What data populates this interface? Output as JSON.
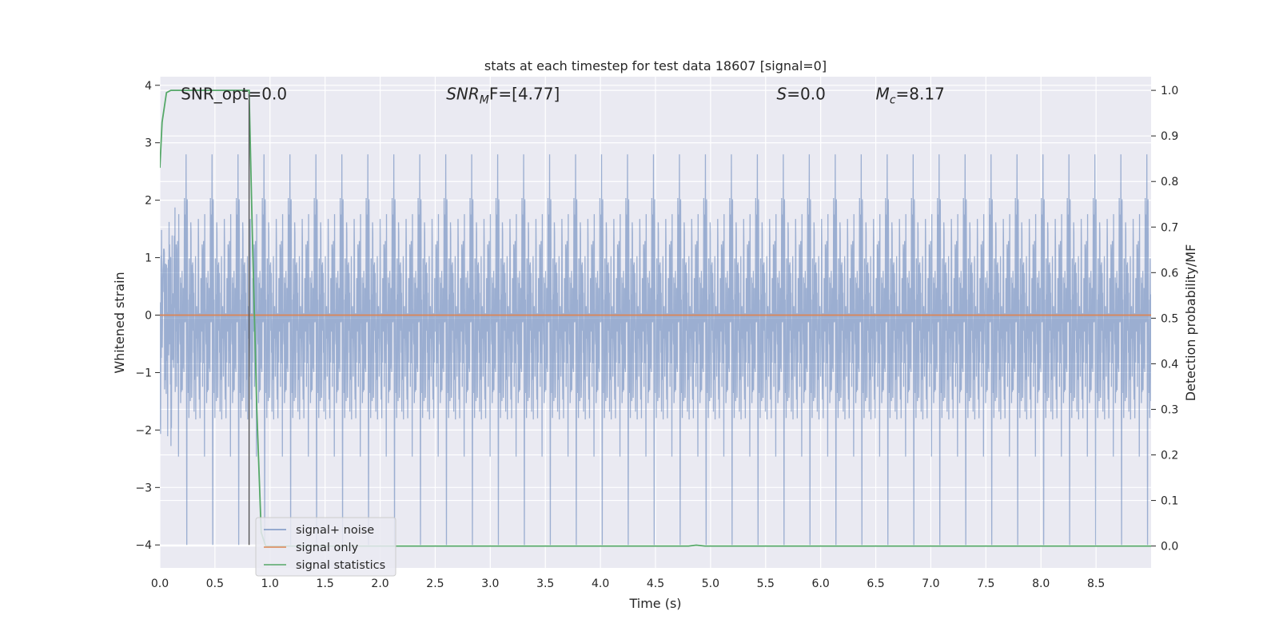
{
  "chart_data": {
    "type": "line",
    "title": "stats at each timestep for test data 18607 [signal=0]",
    "xlabel": "Time (s)",
    "ylabel_left": "Whitened strain",
    "ylabel_right": "Detection probability/MF",
    "xlim": [
      0.0,
      9.0
    ],
    "ylim_left": [
      -4.4,
      4.15
    ],
    "ylim_right": [
      -0.048,
      1.03
    ],
    "x_ticks": [
      0.0,
      0.5,
      1.0,
      1.5,
      2.0,
      2.5,
      3.0,
      3.5,
      4.0,
      4.5,
      5.0,
      5.5,
      6.0,
      6.5,
      7.0,
      7.5,
      8.0,
      8.5
    ],
    "x_tick_labels": [
      "0.0",
      "0.5",
      "1.0",
      "1.5",
      "2.0",
      "2.5",
      "3.0",
      "3.5",
      "4.0",
      "4.5",
      "5.0",
      "5.5",
      "6.0",
      "6.5",
      "7.0",
      "7.5",
      "8.0",
      "8.5"
    ],
    "y_left_ticks": [
      4,
      3,
      2,
      1,
      0,
      -1,
      -2,
      -3,
      -4
    ],
    "y_left_tick_labels": [
      "4",
      "3",
      "2",
      "1",
      "0",
      "−1",
      "−2",
      "−3",
      "−4"
    ],
    "y_right_ticks": [
      1.0,
      0.9,
      0.8,
      0.7,
      0.6,
      0.5,
      0.4,
      0.3,
      0.2,
      0.1,
      0.0
    ],
    "y_right_tick_labels": [
      "1.0",
      "0.9",
      "0.8",
      "0.7",
      "0.6",
      "0.5",
      "0.4",
      "0.3",
      "0.2",
      "0.1",
      "0.0"
    ],
    "grid": true,
    "legend_position": "lower-left",
    "annotations": [
      {
        "x": 0.19,
        "y": 3.85,
        "text": "SNR_opt=0.0"
      },
      {
        "x": 2.6,
        "y": 3.85,
        "text": "SNR",
        "sub": "M",
        "rest": "F=[4.77]",
        "italic": true
      },
      {
        "x": 5.6,
        "y": 3.85,
        "text": "S",
        "rest": "=0.0",
        "italic": true
      },
      {
        "x": 6.5,
        "y": 3.85,
        "text": "M",
        "sub": "c",
        "rest": "=8.17",
        "italic": true
      }
    ],
    "series": [
      {
        "name": "signal+ noise",
        "color": "#4c72b0",
        "note_kind": "whitened strain noise, sample rate ~2048 Hz, amplitude envelope about ±2.7 with peaks near 3.8"
      },
      {
        "name": "signal only",
        "color": "#dd8452",
        "x": [
          0.0,
          9.0
        ],
        "y": [
          0.0,
          0.0
        ]
      },
      {
        "name": "signal statistics",
        "color": "#55a868",
        "axis": "right",
        "x": [
          0.0,
          0.02,
          0.06,
          0.1,
          0.2,
          0.4,
          0.6,
          0.8,
          0.81,
          0.84,
          0.88,
          0.92,
          0.96,
          1.0,
          2.0,
          3.0,
          4.0,
          4.8,
          4.87,
          4.95,
          6.0,
          7.0,
          8.0,
          9.0
        ],
        "y": [
          0.83,
          0.93,
          0.995,
          1.0,
          1.0,
          1.0,
          1.0,
          1.0,
          1.0,
          0.68,
          0.3,
          0.03,
          0.0,
          0.0,
          0.0,
          0.0,
          0.0,
          0.0,
          0.002,
          0.0,
          0.0,
          0.0,
          0.0,
          0.0
        ]
      },
      {
        "name": "",
        "color": "#555555",
        "kind": "vertical-line",
        "x": [
          0.81,
          0.81
        ],
        "y": [
          -4.0,
          3.85
        ]
      }
    ]
  }
}
